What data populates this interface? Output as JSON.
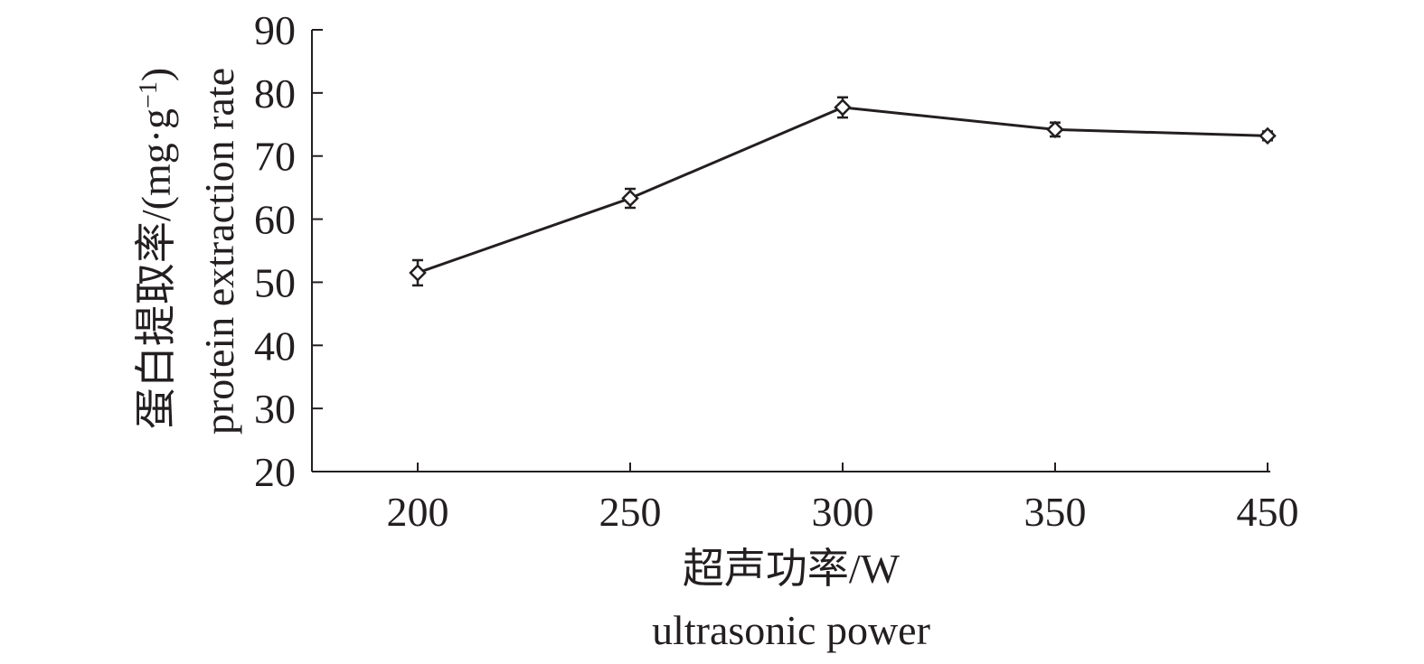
{
  "chart_data": {
    "type": "line",
    "categories": [
      "200",
      "250",
      "300",
      "350",
      "450"
    ],
    "series": [
      {
        "values": [
          51.5,
          63.3,
          77.7,
          74.2,
          73.2
        ],
        "errors": [
          2.0,
          1.5,
          1.6,
          1.1,
          0.7
        ]
      }
    ],
    "marker": "diamond-open",
    "ylim": [
      20,
      90
    ],
    "yticks": [
      20,
      30,
      40,
      50,
      60,
      70,
      80,
      90
    ],
    "xlabel_cn": "超声功率/W",
    "xlabel_en": "ultrasonic power",
    "ylabel_cn_prefix": "蛋白提取率/(mg·g",
    "ylabel_sup": "−1",
    "ylabel_cn_suffix": ")",
    "ylabel_en": "protein extraction rate",
    "grid": false,
    "legend": "none",
    "line_color": "#231f20"
  }
}
